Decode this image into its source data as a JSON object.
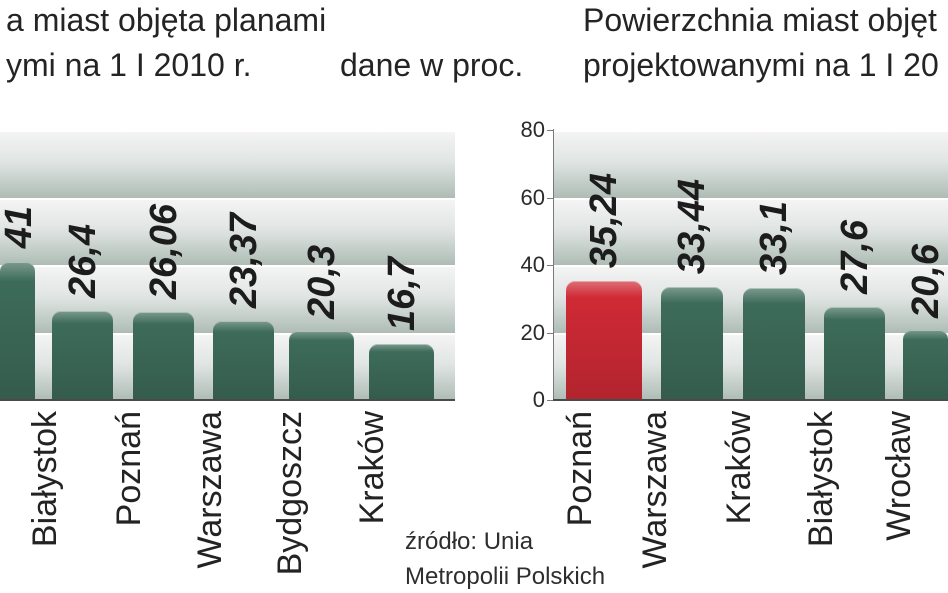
{
  "unit_note": "dane w proc.",
  "source": [
    "źródło: Unia",
    "Metropolii Polskich"
  ],
  "chart_data": [
    {
      "type": "bar",
      "title": [
        "a miast objęta planami",
        "ymi na 1 I 2010 r."
      ],
      "categories": [
        "",
        "Białystok",
        "Poznań",
        "Warszawa",
        "Bydgoszcz",
        "Kraków"
      ],
      "values": [
        41,
        26.4,
        26.06,
        23.37,
        20.3,
        16.7
      ],
      "value_labels": [
        "41",
        "26,4",
        "26,06",
        "23,37",
        "20,3",
        "16,7"
      ],
      "colors": [
        "#3d6b5a",
        "#3d6b5a",
        "#3d6b5a",
        "#3d6b5a",
        "#3d6b5a",
        "#3d6b5a"
      ],
      "ylim": [
        0,
        80
      ],
      "grid": true
    },
    {
      "type": "bar",
      "title": [
        "Powierzchnia miast objęt",
        "projektowanymi na 1 I 20"
      ],
      "categories": [
        "Poznań",
        "Warszawa",
        "Kraków",
        "Białystok",
        "Wrocław"
      ],
      "values": [
        35.24,
        33.44,
        33.1,
        27.6,
        20.6
      ],
      "value_labels": [
        "35,24",
        "33,44",
        "33,1",
        "27,6",
        "20,6"
      ],
      "colors": [
        "#cf2a35",
        "#3d6b5a",
        "#3d6b5a",
        "#3d6b5a",
        "#3d6b5a"
      ],
      "yticks": [
        0,
        20,
        40,
        60,
        80
      ],
      "ylim": [
        0,
        80
      ],
      "grid": true
    }
  ]
}
